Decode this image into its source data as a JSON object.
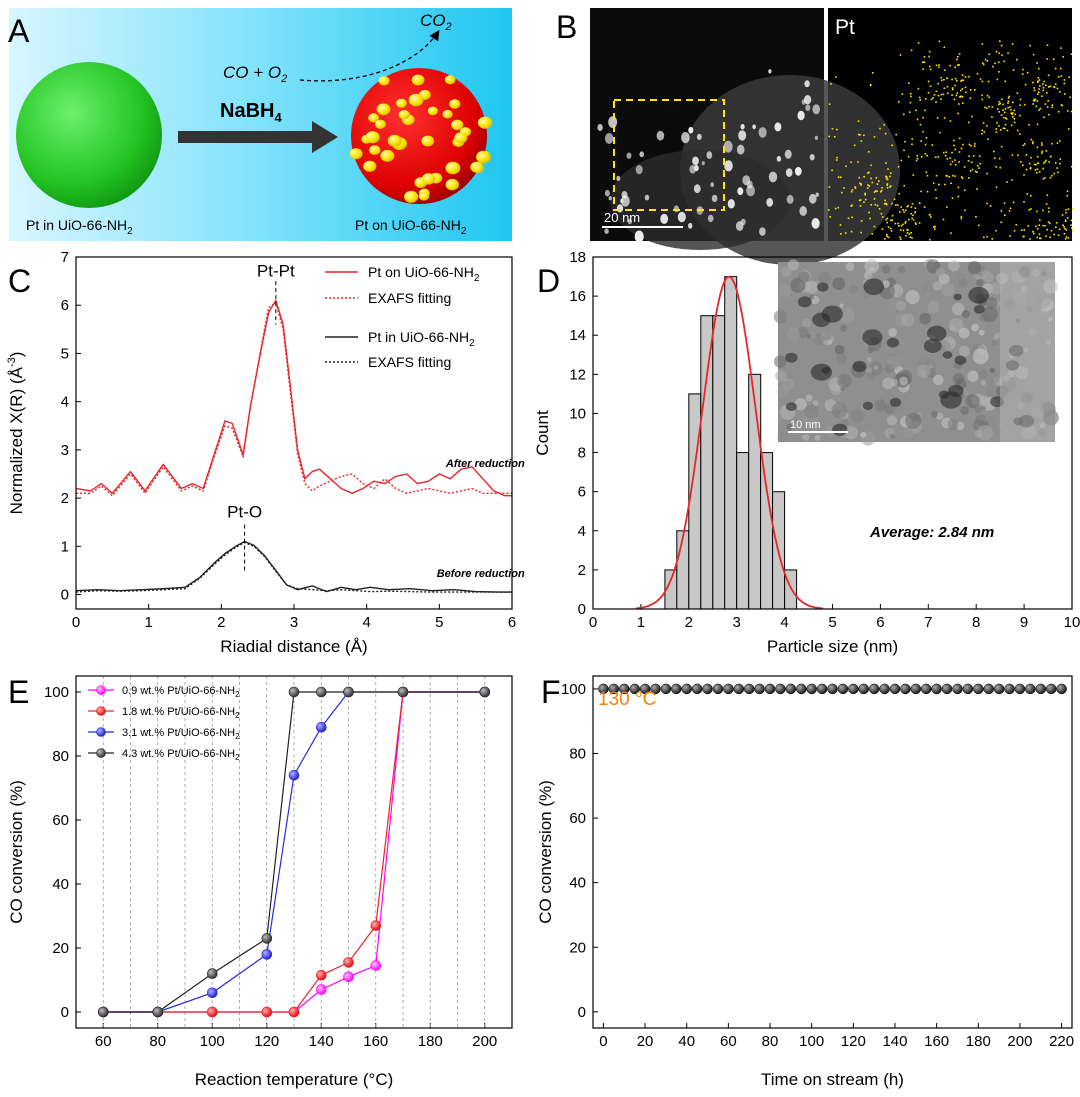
{
  "panel_labels": {
    "A": "A",
    "B": "B",
    "C": "C",
    "D": "D",
    "E": "E",
    "F": "F"
  },
  "colors": {
    "red": "#e8262a",
    "black": "#222222",
    "magenta": "#ff00ff",
    "blue": "#2b2bd8",
    "gray": "#c8c8c8",
    "yellow": "#ffe600",
    "green": "#2ecc2e",
    "sky": "#3ad0f0",
    "orange": "#f0820a"
  },
  "panelA": {
    "left_label": "Pt in UiO-66-NH",
    "left_sub": "2",
    "right_label": "Pt on UiO-66-NH",
    "right_sub": "2",
    "reagent": "NaBH",
    "reagent_sub": "4",
    "reaction_text": "CO + O",
    "reaction_sub": "2",
    "product_text": "CO",
    "product_sub": "2"
  },
  "panelB": {
    "element_label": "Pt",
    "scale_label": "20 nm"
  },
  "panelD": {
    "scale_label": "10 nm",
    "average_text": "Average: 2.84 nm"
  },
  "panelF": {
    "temperature_text": "130 °C"
  },
  "chart_data": [
    {
      "id": "C",
      "type": "line",
      "xlabel": "Riadial distance (Å)",
      "ylabel_main": "Normalized X(R) (Å",
      "ylabel_sup": "-3",
      "ylabel_end": ")",
      "xlim": [
        0,
        6
      ],
      "ylim": [
        -0.3,
        7
      ],
      "xticks": [
        0,
        1,
        2,
        3,
        4,
        5,
        6
      ],
      "yticks": [
        0,
        1,
        2,
        3,
        4,
        5,
        6,
        7
      ],
      "legend": [
        {
          "label": "Pt on UiO-66-NH",
          "sub": "2",
          "style": "solid",
          "color": "#e8262a"
        },
        {
          "label": "EXAFS fitting",
          "sub": "",
          "style": "dotted",
          "color": "#e8262a"
        },
        {
          "label": "Pt in UiO-66-NH",
          "sub": "2",
          "style": "solid",
          "color": "#222222"
        },
        {
          "label": "EXAFS fitting",
          "sub": "",
          "style": "dotted",
          "color": "#222222"
        }
      ],
      "annotations": [
        {
          "text": "Pt-Pt",
          "x": 2.75,
          "y": 6.1
        },
        {
          "text": "Pt-O",
          "x": 2.32,
          "y": 1.12
        },
        {
          "text": "After reduction",
          "x": 5.9,
          "y": 2.6
        },
        {
          "text": "Before reduction",
          "x": 5.9,
          "y": 0.32
        }
      ],
      "series": [
        {
          "name": "After reduction (data)",
          "color": "#e8262a",
          "style": "solid",
          "x": [
            0,
            0.2,
            0.35,
            0.5,
            0.75,
            0.95,
            1.2,
            1.45,
            1.6,
            1.75,
            1.9,
            2.05,
            2.15,
            2.3,
            2.4,
            2.55,
            2.65,
            2.75,
            2.85,
            2.95,
            3.05,
            3.15,
            3.25,
            3.35,
            3.5,
            3.65,
            3.8,
            3.95,
            4.1,
            4.25,
            4.4,
            4.55,
            4.7,
            4.85,
            5.0,
            5.15,
            5.3,
            5.45,
            5.6,
            5.75,
            5.9,
            6.0
          ],
          "y": [
            2.2,
            2.15,
            2.3,
            2.1,
            2.55,
            2.15,
            2.7,
            2.2,
            2.3,
            2.2,
            2.9,
            3.6,
            3.55,
            2.9,
            3.9,
            5.1,
            5.85,
            6.1,
            5.6,
            4.3,
            3.0,
            2.4,
            2.55,
            2.6,
            2.4,
            2.2,
            2.1,
            2.2,
            2.35,
            2.3,
            2.45,
            2.5,
            2.3,
            2.35,
            2.5,
            2.4,
            2.6,
            2.65,
            2.4,
            2.15,
            2.05,
            2.05
          ]
        },
        {
          "name": "After reduction (fit)",
          "color": "#e8262a",
          "style": "dotted",
          "x": [
            0,
            0.2,
            0.35,
            0.5,
            0.75,
            0.95,
            1.2,
            1.45,
            1.6,
            1.75,
            1.9,
            2.05,
            2.15,
            2.3,
            2.4,
            2.55,
            2.65,
            2.75,
            2.85,
            2.95,
            3.05,
            3.15,
            3.25,
            3.35,
            3.5,
            3.65,
            3.8,
            3.95,
            4.1,
            4.25,
            4.4,
            4.55,
            4.7,
            4.85,
            5.0,
            5.15,
            5.3,
            5.45,
            5.6,
            5.75,
            5.9,
            6.0
          ],
          "y": [
            2.1,
            2.1,
            2.25,
            2.05,
            2.5,
            2.1,
            2.65,
            2.15,
            2.25,
            2.15,
            2.85,
            3.5,
            3.45,
            2.85,
            3.9,
            5.15,
            5.95,
            6.05,
            5.5,
            4.2,
            2.9,
            2.3,
            2.15,
            2.25,
            2.35,
            2.45,
            2.5,
            2.3,
            2.2,
            2.4,
            2.2,
            2.1,
            2.15,
            2.2,
            2.15,
            2.1,
            2.15,
            2.2,
            2.1,
            2.1,
            2.1,
            2.1
          ]
        },
        {
          "name": "Before reduction (data)",
          "color": "#222222",
          "style": "solid",
          "x": [
            0,
            0.3,
            0.6,
            0.9,
            1.2,
            1.5,
            1.7,
            1.9,
            2.05,
            2.2,
            2.32,
            2.45,
            2.6,
            2.75,
            2.9,
            3.05,
            3.25,
            3.45,
            3.65,
            3.85,
            4.05,
            4.3,
            4.6,
            4.9,
            5.2,
            5.5,
            5.8,
            6.0
          ],
          "y": [
            0.08,
            0.1,
            0.08,
            0.1,
            0.12,
            0.15,
            0.35,
            0.65,
            0.85,
            1.0,
            1.1,
            1.02,
            0.8,
            0.5,
            0.2,
            0.1,
            0.18,
            0.06,
            0.15,
            0.1,
            0.15,
            0.1,
            0.12,
            0.08,
            0.1,
            0.06,
            0.05,
            0.05
          ]
        },
        {
          "name": "Before reduction (fit)",
          "color": "#222222",
          "style": "dotted",
          "x": [
            0,
            0.3,
            0.6,
            0.9,
            1.2,
            1.5,
            1.7,
            1.9,
            2.05,
            2.2,
            2.32,
            2.45,
            2.6,
            2.75,
            2.9,
            3.05,
            3.25,
            3.45,
            3.65,
            3.85,
            4.05,
            4.3,
            4.6,
            4.9,
            5.2,
            5.5,
            5.8,
            6.0
          ],
          "y": [
            0.05,
            0.08,
            0.07,
            0.08,
            0.1,
            0.12,
            0.33,
            0.62,
            0.82,
            0.98,
            1.08,
            1.0,
            0.78,
            0.48,
            0.2,
            0.12,
            0.1,
            0.08,
            0.1,
            0.08,
            0.06,
            0.07,
            0.06,
            0.05,
            0.05,
            0.05,
            0.05,
            0.05
          ]
        }
      ]
    },
    {
      "id": "D",
      "type": "bar",
      "xlabel": "Particle size (nm)",
      "ylabel": "Count",
      "xlim": [
        0,
        10
      ],
      "ylim": [
        0,
        18
      ],
      "xticks": [
        0,
        1,
        2,
        3,
        4,
        5,
        6,
        7,
        8,
        9,
        10
      ],
      "yticks": [
        0,
        2,
        4,
        6,
        8,
        10,
        12,
        14,
        16,
        18
      ],
      "bin_width": 0.25,
      "bin_starts": [
        1.5,
        1.75,
        2.0,
        2.25,
        2.5,
        2.75,
        3.0,
        3.25,
        3.5,
        3.75,
        4.0
      ],
      "counts": [
        2,
        4,
        11,
        15,
        15,
        17,
        8,
        12,
        8,
        6,
        2
      ],
      "fit": {
        "type": "gaussian",
        "center": 2.84,
        "peak": 17,
        "sigma": 0.55,
        "x_range": [
          0.9,
          4.8
        ]
      }
    },
    {
      "id": "E",
      "type": "line",
      "xlabel": "Reaction temperature (°C)",
      "ylabel": "CO conversion (%)",
      "xlim": [
        50,
        210
      ],
      "ylim": [
        -5,
        105
      ],
      "xticks": [
        60,
        80,
        100,
        120,
        140,
        160,
        180,
        200
      ],
      "yticks": [
        0,
        20,
        40,
        60,
        80,
        100
      ],
      "gridlines_x": [
        60,
        70,
        80,
        90,
        100,
        110,
        120,
        130,
        140,
        150,
        160,
        170,
        180,
        190,
        200
      ],
      "series": [
        {
          "name": "0.9 wt.% Pt/UiO-66-NH",
          "sub": "2",
          "color": "#ff00ff",
          "x": [
            60,
            80,
            100,
            120,
            130,
            140,
            150,
            160,
            170,
            200
          ],
          "y": [
            0,
            0,
            0,
            0,
            0,
            7,
            11,
            14.5,
            100,
            100
          ]
        },
        {
          "name": "1.8 wt.% Pt/UiO-66-NH",
          "sub": "2",
          "color": "#e8262a",
          "x": [
            60,
            80,
            100,
            120,
            130,
            140,
            150,
            160,
            170,
            200
          ],
          "y": [
            0,
            0,
            0,
            0,
            0,
            11.5,
            15.5,
            27,
            100,
            100
          ]
        },
        {
          "name": "3.1 wt.% Pt/UiO-66-NH",
          "sub": "2",
          "color": "#2b2bd8",
          "x": [
            60,
            80,
            100,
            120,
            130,
            140,
            150,
            170,
            200
          ],
          "y": [
            0,
            0,
            6,
            18,
            74,
            89,
            100,
            100,
            100
          ]
        },
        {
          "name": "4.3 wt.% Pt/UiO-66-NH",
          "sub": "2",
          "color": "#222222",
          "x": [
            60,
            80,
            100,
            120,
            130,
            140,
            150,
            170,
            200
          ],
          "y": [
            0,
            0,
            12,
            23,
            100,
            100,
            100,
            100,
            100
          ]
        }
      ]
    },
    {
      "id": "F",
      "type": "scatter",
      "xlabel": "Time on stream (h)",
      "ylabel": "CO conversion (%)",
      "xlim": [
        -5,
        225
      ],
      "ylim": [
        -5,
        104
      ],
      "xticks": [
        0,
        20,
        40,
        60,
        80,
        100,
        120,
        140,
        160,
        180,
        200,
        220
      ],
      "yticks": [
        0,
        20,
        40,
        60,
        80,
        100
      ],
      "series": [
        {
          "name": "CO conversion",
          "color": "#222222",
          "x_start": 0,
          "x_end": 220,
          "x_step": 5,
          "y": 100
        }
      ]
    }
  ]
}
